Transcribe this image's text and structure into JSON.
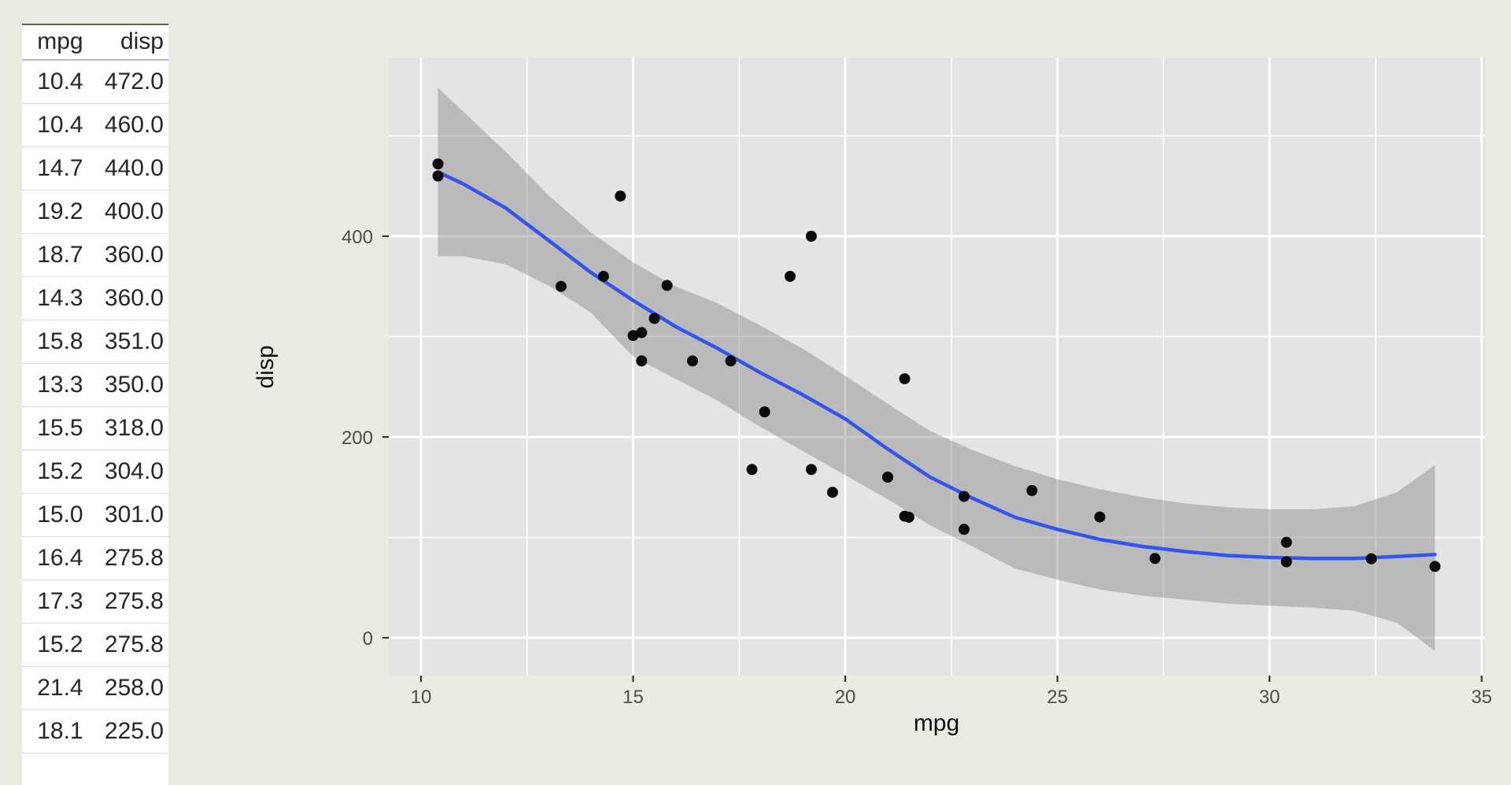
{
  "table": {
    "columns": [
      "mpg",
      "disp"
    ],
    "rows": [
      [
        "10.4",
        "472.0"
      ],
      [
        "10.4",
        "460.0"
      ],
      [
        "14.7",
        "440.0"
      ],
      [
        "19.2",
        "400.0"
      ],
      [
        "18.7",
        "360.0"
      ],
      [
        "14.3",
        "360.0"
      ],
      [
        "15.8",
        "351.0"
      ],
      [
        "13.3",
        "350.0"
      ],
      [
        "15.5",
        "318.0"
      ],
      [
        "15.2",
        "304.0"
      ],
      [
        "15.0",
        "301.0"
      ],
      [
        "16.4",
        "275.8"
      ],
      [
        "17.3",
        "275.8"
      ],
      [
        "15.2",
        "275.8"
      ],
      [
        "21.4",
        "258.0"
      ],
      [
        "18.1",
        "225.0"
      ]
    ]
  },
  "chart_data": {
    "type": "scatter",
    "title": "",
    "xlabel": "mpg",
    "ylabel": "disp",
    "xlim": [
      9.24,
      35.08
    ],
    "ylim": [
      -37.6,
      578
    ],
    "x_ticks": [
      10,
      15,
      20,
      25,
      30,
      35
    ],
    "y_ticks": [
      0,
      200,
      400
    ],
    "x_minor": [
      12.5,
      17.5,
      22.5,
      27.5,
      32.5
    ],
    "y_minor": [
      100,
      300,
      500
    ],
    "grid": "on",
    "legend": "none",
    "points": [
      [
        21.0,
        160.0
      ],
      [
        21.0,
        160.0
      ],
      [
        22.8,
        108.0
      ],
      [
        21.4,
        258.0
      ],
      [
        18.7,
        360.0
      ],
      [
        18.1,
        225.0
      ],
      [
        14.3,
        360.0
      ],
      [
        24.4,
        146.7
      ],
      [
        22.8,
        140.8
      ],
      [
        19.2,
        167.6
      ],
      [
        17.8,
        167.6
      ],
      [
        16.4,
        275.8
      ],
      [
        17.3,
        275.8
      ],
      [
        15.2,
        275.8
      ],
      [
        10.4,
        472.0
      ],
      [
        10.4,
        460.0
      ],
      [
        14.7,
        440.0
      ],
      [
        32.4,
        78.7
      ],
      [
        30.4,
        75.7
      ],
      [
        33.9,
        71.1
      ],
      [
        21.5,
        120.1
      ],
      [
        15.5,
        318.0
      ],
      [
        15.2,
        304.0
      ],
      [
        13.3,
        350.0
      ],
      [
        19.2,
        400.0
      ],
      [
        27.3,
        79.0
      ],
      [
        26.0,
        120.3
      ],
      [
        30.4,
        95.1
      ],
      [
        15.8,
        351.0
      ],
      [
        19.7,
        145.0
      ],
      [
        15.0,
        301.0
      ],
      [
        21.4,
        121.1
      ]
    ],
    "smooth": {
      "method": "loess",
      "x": [
        10.4,
        11,
        12,
        13,
        14,
        15,
        16,
        17,
        18,
        19,
        20,
        21,
        22,
        23,
        24,
        25,
        26,
        27,
        28,
        29,
        30,
        31,
        32,
        33,
        33.9
      ],
      "fit": [
        464,
        452,
        428,
        396,
        364,
        336,
        310,
        288,
        264,
        242,
        218,
        188,
        160,
        139,
        120,
        108,
        98,
        91,
        86,
        82,
        80,
        79,
        79,
        81,
        83
      ],
      "upper": [
        548,
        524,
        484,
        441,
        404,
        374,
        350,
        333,
        311,
        288,
        261,
        233,
        206,
        187,
        171,
        158,
        148,
        140,
        134,
        130,
        128,
        128,
        131,
        145,
        172
      ],
      "lower": [
        380,
        380,
        372,
        351,
        324,
        280,
        258,
        236,
        210,
        186,
        162,
        138,
        112,
        91,
        69,
        58,
        48,
        42,
        38,
        34,
        32,
        30,
        27,
        15,
        -13
      ]
    },
    "colors": {
      "page_bg": "#ECEBE2",
      "panel_bg": "#E4E4E4",
      "grid_line": "#FFFFFF",
      "ribbon": "rgba(118,118,118,0.38)",
      "smooth_line": "#3355EE",
      "point": "#0A0A0A",
      "tick_mark": "#333333",
      "tick_label": "#4D4D4D",
      "axis_title": "#111111"
    }
  }
}
